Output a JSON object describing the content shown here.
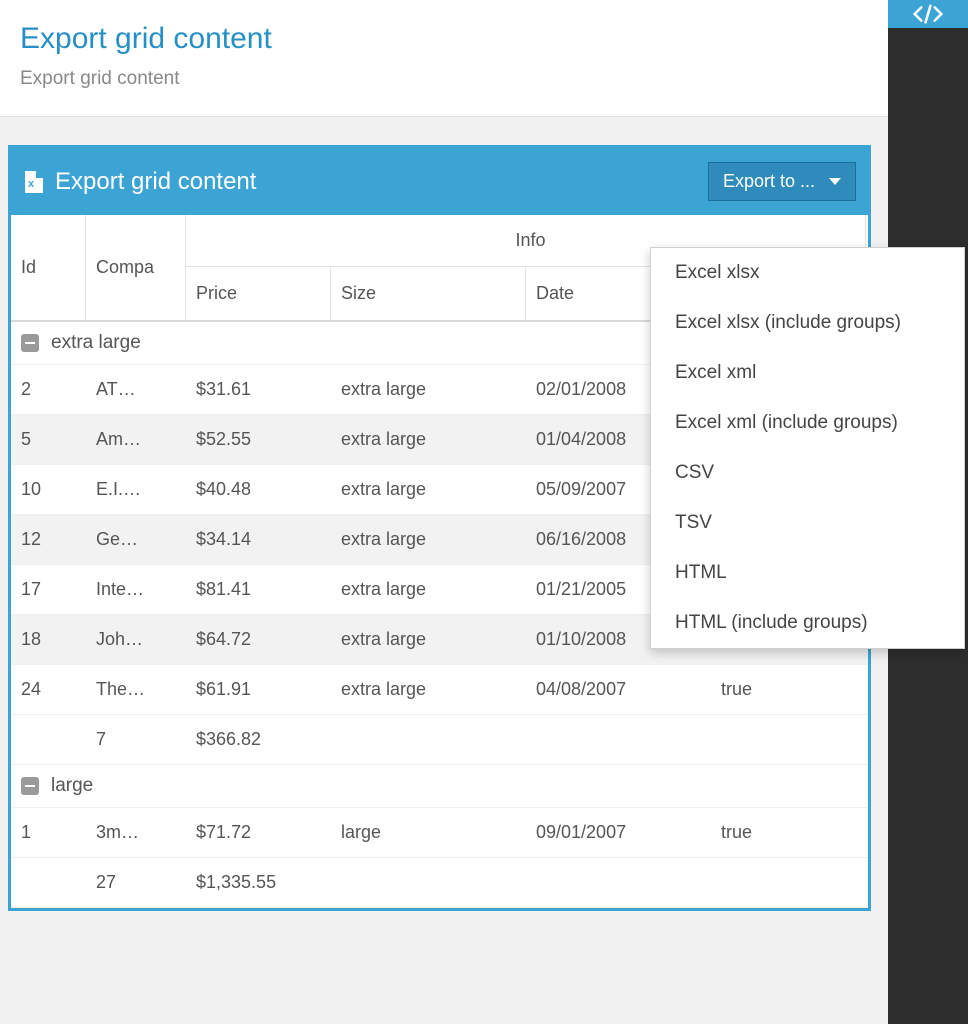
{
  "colors": {
    "primary": "#3ca4d4",
    "primary_dark": "#2f8bbc",
    "border_dark": "#1b6e9a",
    "page_bg": "#f1f1f1",
    "dark_strip": "#2d2d2d",
    "header_text": "#2690c6",
    "text": "#555555",
    "alt_row": "#f2f2f2",
    "divider": "#e2e2e2"
  },
  "header": {
    "title": "Export grid content",
    "subtitle": "Export grid content"
  },
  "panel": {
    "title": "Export grid content",
    "export_button_label": "Export to ..."
  },
  "columns": {
    "id": "Id",
    "company": "Compa",
    "info": "Info",
    "price": "Price",
    "size": "Size",
    "date": "Date",
    "visible": ""
  },
  "groups": [
    {
      "label": "extra large",
      "rows": [
        {
          "id": "2",
          "company": "AT…",
          "price": "$31.61",
          "size": "extra large",
          "date": "02/01/2008",
          "visible": ""
        },
        {
          "id": "5",
          "company": "Am…",
          "price": "$52.55",
          "size": "extra large",
          "date": "01/04/2008",
          "visible": ""
        },
        {
          "id": "10",
          "company": "E.I.…",
          "price": "$40.48",
          "size": "extra large",
          "date": "05/09/2007",
          "visible": ""
        },
        {
          "id": "12",
          "company": "Ge…",
          "price": "$34.14",
          "size": "extra large",
          "date": "06/16/2008",
          "visible": ""
        },
        {
          "id": "17",
          "company": "Inte…",
          "price": "$81.41",
          "size": "extra large",
          "date": "01/21/2005",
          "visible": "true"
        },
        {
          "id": "18",
          "company": "Joh…",
          "price": "$64.72",
          "size": "extra large",
          "date": "01/10/2008",
          "visible": "true"
        },
        {
          "id": "24",
          "company": "The…",
          "price": "$61.91",
          "size": "extra large",
          "date": "04/08/2007",
          "visible": "true"
        }
      ],
      "summary": {
        "count": "7",
        "total": "$366.82"
      }
    },
    {
      "label": "large",
      "rows": [
        {
          "id": "1",
          "company": "3m…",
          "price": "$71.72",
          "size": "large",
          "date": "09/01/2007",
          "visible": "true"
        }
      ],
      "summary": {
        "count": "27",
        "total": "$1,335.55"
      }
    }
  ],
  "export_menu": [
    "Excel xlsx",
    "Excel xlsx (include groups)",
    "Excel xml",
    "Excel xml (include groups)",
    "CSV",
    "TSV",
    "HTML",
    "HTML (include groups)"
  ]
}
